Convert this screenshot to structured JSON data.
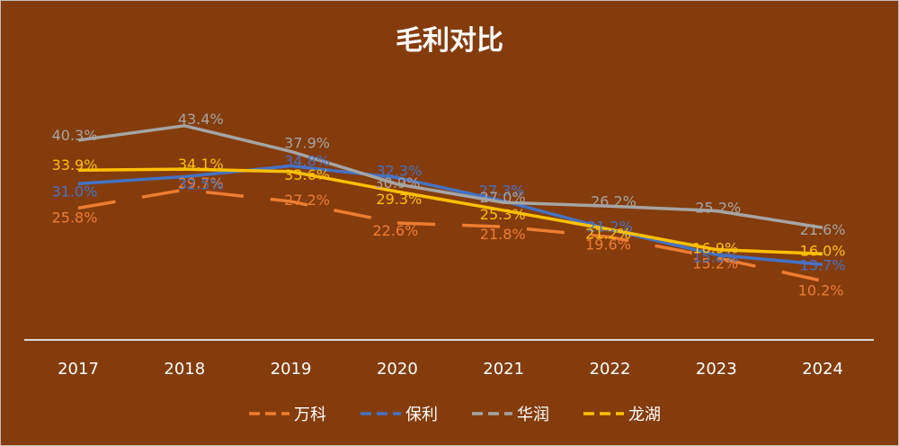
{
  "chart_data": {
    "type": "line",
    "title": "毛利对比",
    "xlabel": "",
    "ylabel": "",
    "categories": [
      "2017",
      "2018",
      "2019",
      "2020",
      "2021",
      "2022",
      "2023",
      "2024"
    ],
    "series": [
      {
        "name": "万科",
        "color": "#ED7D31",
        "dash": true,
        "values": [
          25.8,
          29.7,
          27.2,
          22.6,
          21.8,
          19.6,
          15.2,
          10.2
        ],
        "labels": [
          "25.8%",
          "29.7%",
          "27.2%",
          "22.6%",
          "21.8%",
          "19.6%",
          "15.2%",
          "10.2%"
        ]
      },
      {
        "name": "保利",
        "color": "#4472C4",
        "dash": false,
        "values": [
          31.0,
          32.5,
          34.8,
          32.3,
          27.3,
          21.2,
          15.8,
          13.7
        ],
        "labels": [
          "31.0%",
          "32.5%",
          "34.8%",
          "32.3%",
          "27.3%",
          "21.2%",
          "15.8%",
          "13.7%"
        ]
      },
      {
        "name": "华润",
        "color": "#A5A5A5",
        "dash": false,
        "values": [
          40.3,
          43.4,
          37.9,
          30.9,
          27.0,
          26.2,
          25.2,
          21.6
        ],
        "labels": [
          "40.3%",
          "43.4%",
          "37.9%",
          "30.9%",
          "27.0%",
          "26.2%",
          "25.2%",
          "21.6%"
        ]
      },
      {
        "name": "龙湖",
        "color": "#FFC000",
        "dash": false,
        "values": [
          33.9,
          34.1,
          33.6,
          29.3,
          25.3,
          21.2,
          16.9,
          16.0
        ],
        "labels": [
          "33.9%",
          "34.1%",
          "33.6%",
          "29.3%",
          "25.3%",
          "21.2%",
          "16.9%",
          "16.0%"
        ]
      }
    ],
    "legend_position": "bottom",
    "grid": false,
    "background": "#843C0C",
    "axis_color": "#D9D9D9"
  }
}
